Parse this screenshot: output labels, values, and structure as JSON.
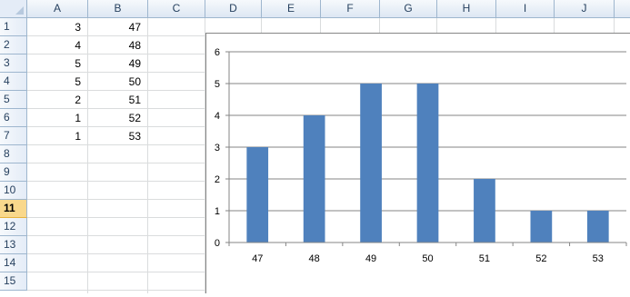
{
  "spreadsheet": {
    "columns": [
      "A",
      "B",
      "C",
      "D",
      "E",
      "F",
      "G",
      "H",
      "I",
      "J"
    ],
    "rows": [
      "1",
      "2",
      "3",
      "4",
      "5",
      "6",
      "7",
      "8",
      "9",
      "10",
      "11",
      "12",
      "13",
      "14",
      "15"
    ],
    "active_row": "11",
    "data": {
      "A": [
        "3",
        "4",
        "5",
        "5",
        "2",
        "1",
        "1"
      ],
      "B": [
        "47",
        "48",
        "49",
        "50",
        "51",
        "52",
        "53"
      ]
    }
  },
  "chart_data": {
    "type": "bar",
    "categories": [
      "47",
      "48",
      "49",
      "50",
      "51",
      "52",
      "53"
    ],
    "values": [
      3,
      4,
      5,
      5,
      2,
      1,
      1
    ],
    "ylim": [
      0,
      6
    ],
    "yticks": [
      "0",
      "1",
      "2",
      "3",
      "4",
      "5",
      "6"
    ],
    "grid": true,
    "legend": "none",
    "bar_color": "#4f81bd"
  }
}
